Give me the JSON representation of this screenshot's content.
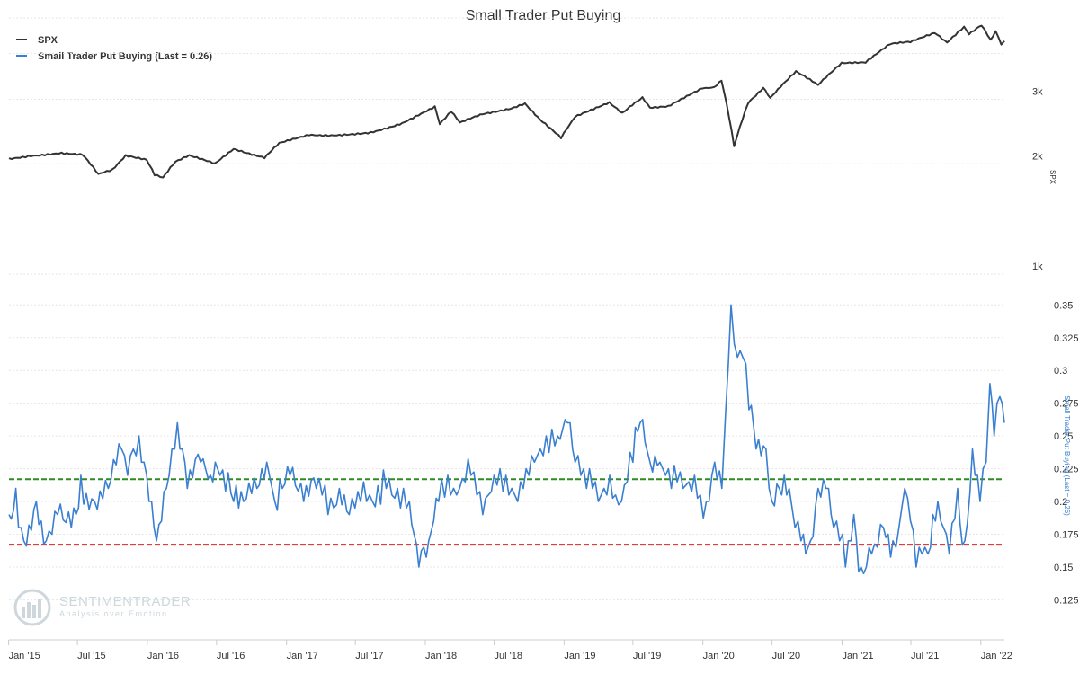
{
  "watermark": {
    "brand": "SENTIMENTRADER",
    "tagline": "Analysis over Emotion"
  },
  "chart_data": {
    "type": "line",
    "title": "Small Trader Put Buying",
    "legend": {
      "placement": "top-left"
    },
    "x_ticks": [
      "Jan '15",
      "Jul '15",
      "Jan '16",
      "Jul '16",
      "Jan '17",
      "Jul '17",
      "Jan '18",
      "Jul '18",
      "Jan '19",
      "Jul '19",
      "Jan '20",
      "Jul '20",
      "Jan '21",
      "Jul '21",
      "Jan '22"
    ],
    "x_range": [
      "2015-01-02",
      "2022-03-04"
    ],
    "panels": [
      {
        "id": "spx",
        "ylabel": "SPX",
        "yscale": "log",
        "ylim": [
          1000,
          5000
        ],
        "y_ticks": [
          1000,
          2000,
          3000
        ],
        "y_tick_labels": [
          "1k",
          "2k",
          "3k"
        ],
        "grid": true,
        "series": [
          {
            "name": "SPX",
            "color": "#333333",
            "anchors": [
              [
                "2015-01-02",
                2058
              ],
              [
                "2015-03-01",
                2110
              ],
              [
                "2015-05-20",
                2130
              ],
              [
                "2015-07-15",
                2110
              ],
              [
                "2015-08-25",
                1870
              ],
              [
                "2015-10-01",
                1920
              ],
              [
                "2015-11-05",
                2100
              ],
              [
                "2015-12-30",
                2043
              ],
              [
                "2016-01-20",
                1860
              ],
              [
                "2016-02-11",
                1830
              ],
              [
                "2016-03-15",
                2020
              ],
              [
                "2016-04-20",
                2100
              ],
              [
                "2016-06-27",
                2000
              ],
              [
                "2016-08-15",
                2190
              ],
              [
                "2016-11-04",
                2085
              ],
              [
                "2016-12-13",
                2270
              ],
              [
                "2017-03-01",
                2395
              ],
              [
                "2017-05-20",
                2400
              ],
              [
                "2017-08-10",
                2440
              ],
              [
                "2017-09-15",
                2500
              ],
              [
                "2017-11-01",
                2580
              ],
              [
                "2018-01-26",
                2872
              ],
              [
                "2018-02-08",
                2580
              ],
              [
                "2018-03-10",
                2780
              ],
              [
                "2018-04-02",
                2580
              ],
              [
                "2018-06-01",
                2740
              ],
              [
                "2018-08-15",
                2840
              ],
              [
                "2018-09-20",
                2930
              ],
              [
                "2018-10-30",
                2640
              ],
              [
                "2018-12-24",
                2350
              ],
              [
                "2019-01-30",
                2700
              ],
              [
                "2019-04-30",
                2945
              ],
              [
                "2019-06-03",
                2745
              ],
              [
                "2019-07-26",
                3025
              ],
              [
                "2019-08-15",
                2850
              ],
              [
                "2019-10-02",
                2880
              ],
              [
                "2019-12-31",
                3230
              ],
              [
                "2020-01-31",
                3225
              ],
              [
                "2020-02-19",
                3386
              ],
              [
                "2020-03-23",
                2237
              ],
              [
                "2020-04-29",
                2940
              ],
              [
                "2020-06-08",
                3230
              ],
              [
                "2020-06-26",
                3010
              ],
              [
                "2020-09-02",
                3580
              ],
              [
                "2020-10-30",
                3270
              ],
              [
                "2020-12-31",
                3756
              ],
              [
                "2021-03-04",
                3770
              ],
              [
                "2021-05-07",
                4230
              ],
              [
                "2021-06-30",
                4300
              ],
              [
                "2021-09-02",
                4536
              ],
              [
                "2021-10-04",
                4300
              ],
              [
                "2021-11-18",
                4704
              ],
              [
                "2021-12-01",
                4510
              ],
              [
                "2022-01-03",
                4796
              ],
              [
                "2022-01-27",
                4326
              ],
              [
                "2022-02-09",
                4587
              ],
              [
                "2022-02-24",
                4225
              ],
              [
                "2022-03-04",
                4328
              ]
            ]
          }
        ]
      },
      {
        "id": "put-buying",
        "ylabel": "Small Trader Put Buying (Last = 0.26)",
        "ylim": [
          0.115,
          0.355
        ],
        "y_ticks": [
          0.125,
          0.15,
          0.175,
          0.2,
          0.225,
          0.25,
          0.275,
          0.3,
          0.325,
          0.35
        ],
        "y_tick_labels": [
          "0.125",
          "0.15",
          "0.175",
          "0.2",
          "0.225",
          "0.25",
          "0.275",
          "0.3",
          "0.325",
          "0.35"
        ],
        "grid": true,
        "reference_lines": [
          {
            "y": 0.217,
            "color": "#2e8b20",
            "style": "dashed"
          },
          {
            "y": 0.167,
            "color": "#dd2222",
            "style": "dashed"
          }
        ],
        "series": [
          {
            "name": "Small Trader Put Buying (Last = 0.26)",
            "color": "#3a7fd0",
            "last": 0.26,
            "anchors": [
              [
                "2015-01-02",
                0.18
              ],
              [
                "2015-01-20",
                0.2
              ],
              [
                "2015-02-10",
                0.17
              ],
              [
                "2015-03-15",
                0.2
              ],
              [
                "2015-04-10",
                0.17
              ],
              [
                "2015-05-10",
                0.2
              ],
              [
                "2015-06-15",
                0.19
              ],
              [
                "2015-07-10",
                0.21
              ],
              [
                "2015-08-15",
                0.2
              ],
              [
                "2015-09-20",
                0.22
              ],
              [
                "2015-10-25",
                0.25
              ],
              [
                "2015-11-10",
                0.22
              ],
              [
                "2015-12-10",
                0.24
              ],
              [
                "2015-12-30",
                0.21
              ],
              [
                "2016-01-25",
                0.17
              ],
              [
                "2016-02-20",
                0.22
              ],
              [
                "2016-03-20",
                0.26
              ],
              [
                "2016-04-15",
                0.22
              ],
              [
                "2016-05-20",
                0.24
              ],
              [
                "2016-06-15",
                0.21
              ],
              [
                "2016-07-10",
                0.23
              ],
              [
                "2016-08-15",
                0.2
              ],
              [
                "2016-09-10",
                0.21
              ],
              [
                "2016-10-15",
                0.22
              ],
              [
                "2016-11-10",
                0.23
              ],
              [
                "2016-12-01",
                0.2
              ],
              [
                "2017-01-10",
                0.22
              ],
              [
                "2017-02-15",
                0.2
              ],
              [
                "2017-03-20",
                0.21
              ],
              [
                "2017-04-20",
                0.2
              ],
              [
                "2017-05-20",
                0.21
              ],
              [
                "2017-06-15",
                0.2
              ],
              [
                "2017-07-15",
                0.21
              ],
              [
                "2017-08-15",
                0.19
              ],
              [
                "2017-09-20",
                0.22
              ],
              [
                "2017-10-20",
                0.21
              ],
              [
                "2017-11-20",
                0.19
              ],
              [
                "2017-12-15",
                0.16
              ],
              [
                "2018-01-10",
                0.17
              ],
              [
                "2018-02-05",
                0.2
              ],
              [
                "2018-03-01",
                0.22
              ],
              [
                "2018-04-01",
                0.2
              ],
              [
                "2018-05-01",
                0.23
              ],
              [
                "2018-06-01",
                0.2
              ],
              [
                "2018-07-01",
                0.21
              ],
              [
                "2018-08-01",
                0.22
              ],
              [
                "2018-09-01",
                0.2
              ],
              [
                "2018-10-15",
                0.23
              ],
              [
                "2018-11-15",
                0.25
              ],
              [
                "2018-12-15",
                0.24
              ],
              [
                "2019-01-10",
                0.27
              ],
              [
                "2019-01-30",
                0.24
              ],
              [
                "2019-03-01",
                0.22
              ],
              [
                "2019-04-01",
                0.2
              ],
              [
                "2019-05-01",
                0.22
              ],
              [
                "2019-06-01",
                0.19
              ],
              [
                "2019-07-01",
                0.24
              ],
              [
                "2019-07-20",
                0.26
              ],
              [
                "2019-08-15",
                0.23
              ],
              [
                "2019-09-10",
                0.24
              ],
              [
                "2019-10-10",
                0.22
              ],
              [
                "2019-11-10",
                0.21
              ],
              [
                "2019-12-10",
                0.22
              ],
              [
                "2020-01-10",
                0.19
              ],
              [
                "2020-02-01",
                0.22
              ],
              [
                "2020-02-20",
                0.21
              ],
              [
                "2020-03-01",
                0.26
              ],
              [
                "2020-03-15",
                0.35
              ],
              [
                "2020-04-01",
                0.31
              ],
              [
                "2020-04-15",
                0.32
              ],
              [
                "2020-05-01",
                0.27
              ],
              [
                "2020-05-20",
                0.25
              ],
              [
                "2020-06-15",
                0.24
              ],
              [
                "2020-07-01",
                0.2
              ],
              [
                "2020-07-20",
                0.22
              ],
              [
                "2020-08-15",
                0.2
              ],
              [
                "2020-09-15",
                0.18
              ],
              [
                "2020-10-10",
                0.16
              ],
              [
                "2020-10-30",
                0.2
              ],
              [
                "2020-11-20",
                0.21
              ],
              [
                "2020-12-10",
                0.18
              ],
              [
                "2021-01-10",
                0.16
              ],
              [
                "2021-02-01",
                0.19
              ],
              [
                "2021-02-20",
                0.14
              ],
              [
                "2021-03-20",
                0.16
              ],
              [
                "2021-04-20",
                0.19
              ],
              [
                "2021-05-15",
                0.16
              ],
              [
                "2021-06-15",
                0.22
              ],
              [
                "2021-07-15",
                0.15
              ],
              [
                "2021-08-15",
                0.17
              ],
              [
                "2021-09-10",
                0.19
              ],
              [
                "2021-10-10",
                0.17
              ],
              [
                "2021-11-01",
                0.21
              ],
              [
                "2021-11-20",
                0.16
              ],
              [
                "2021-12-10",
                0.23
              ],
              [
                "2021-12-30",
                0.2
              ],
              [
                "2022-01-15",
                0.23
              ],
              [
                "2022-01-25",
                0.29
              ],
              [
                "2022-02-05",
                0.26
              ],
              [
                "2022-02-20",
                0.29
              ],
              [
                "2022-03-04",
                0.26
              ]
            ]
          }
        ]
      }
    ]
  }
}
